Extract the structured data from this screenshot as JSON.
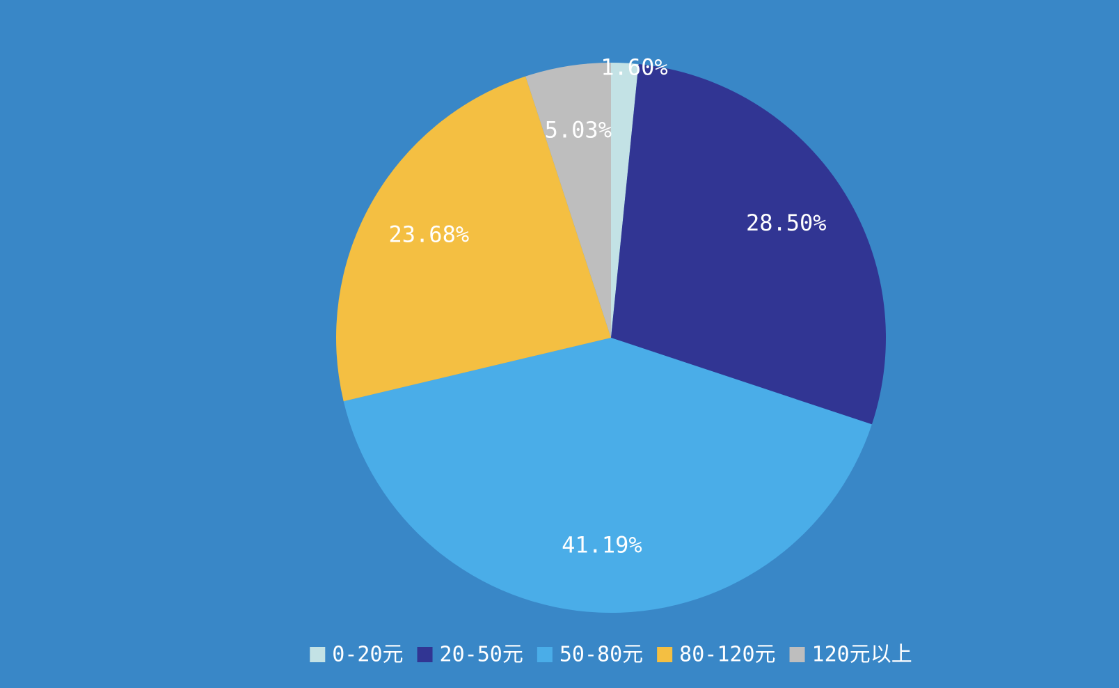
{
  "page": {
    "background": "#3987C7"
  },
  "chart_data": {
    "type": "pie",
    "categories": [
      "0-20元",
      "20-50元",
      "50-80元",
      "80-120元",
      "120元以上"
    ],
    "values": [
      1.6,
      28.5,
      41.19,
      23.68,
      5.03
    ],
    "labels": [
      "1.60%",
      "28.50%",
      "41.19%",
      "23.68%",
      "5.03%"
    ],
    "colors": [
      "#C3E2E5",
      "#313593",
      "#4AADE8",
      "#F4BF42",
      "#BEBEBE"
    ],
    "start_angle": "top (12 o'clock)",
    "direction": "clockwise",
    "legend": {
      "position": "bottom-center"
    }
  }
}
